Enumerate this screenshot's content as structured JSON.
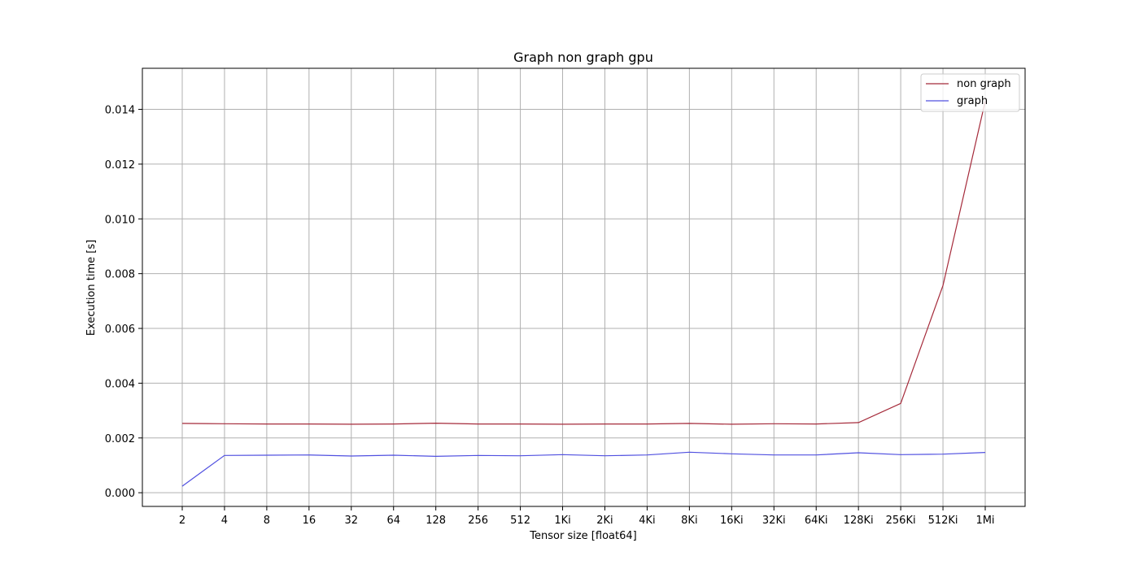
{
  "chart_data": {
    "type": "line",
    "title": "Graph non graph gpu",
    "xlabel": "Tensor size [float64]",
    "ylabel": "Execution time [s]",
    "categories": [
      "2",
      "4",
      "8",
      "16",
      "32",
      "64",
      "128",
      "256",
      "512",
      "1Ki",
      "2Ki",
      "4Ki",
      "8Ki",
      "16Ki",
      "32Ki",
      "64Ki",
      "128Ki",
      "256Ki",
      "512Ki",
      "1Mi"
    ],
    "ylim": [
      -0.0005,
      0.0155
    ],
    "yticks": [
      0.0,
      0.002,
      0.004,
      0.006,
      0.008,
      0.01,
      0.012,
      0.014
    ],
    "ytick_labels": [
      "0.000",
      "0.002",
      "0.004",
      "0.006",
      "0.008",
      "0.010",
      "0.012",
      "0.014"
    ],
    "grid": true,
    "legend_position": "top-right",
    "series": [
      {
        "name": "non graph",
        "color": "#a52a3a",
        "values": [
          0.00253,
          0.00252,
          0.00251,
          0.00251,
          0.0025,
          0.00251,
          0.00254,
          0.00251,
          0.00251,
          0.0025,
          0.00251,
          0.00251,
          0.00253,
          0.0025,
          0.00252,
          0.00251,
          0.00256,
          0.00326,
          0.00757,
          0.0143
        ]
      },
      {
        "name": "graph",
        "color": "#5050e0",
        "values": [
          0.00024,
          0.00136,
          0.00137,
          0.00138,
          0.00134,
          0.00137,
          0.00133,
          0.00136,
          0.00135,
          0.00139,
          0.00135,
          0.00138,
          0.00148,
          0.00142,
          0.00138,
          0.00138,
          0.00146,
          0.00139,
          0.00141,
          0.00147
        ]
      }
    ]
  }
}
